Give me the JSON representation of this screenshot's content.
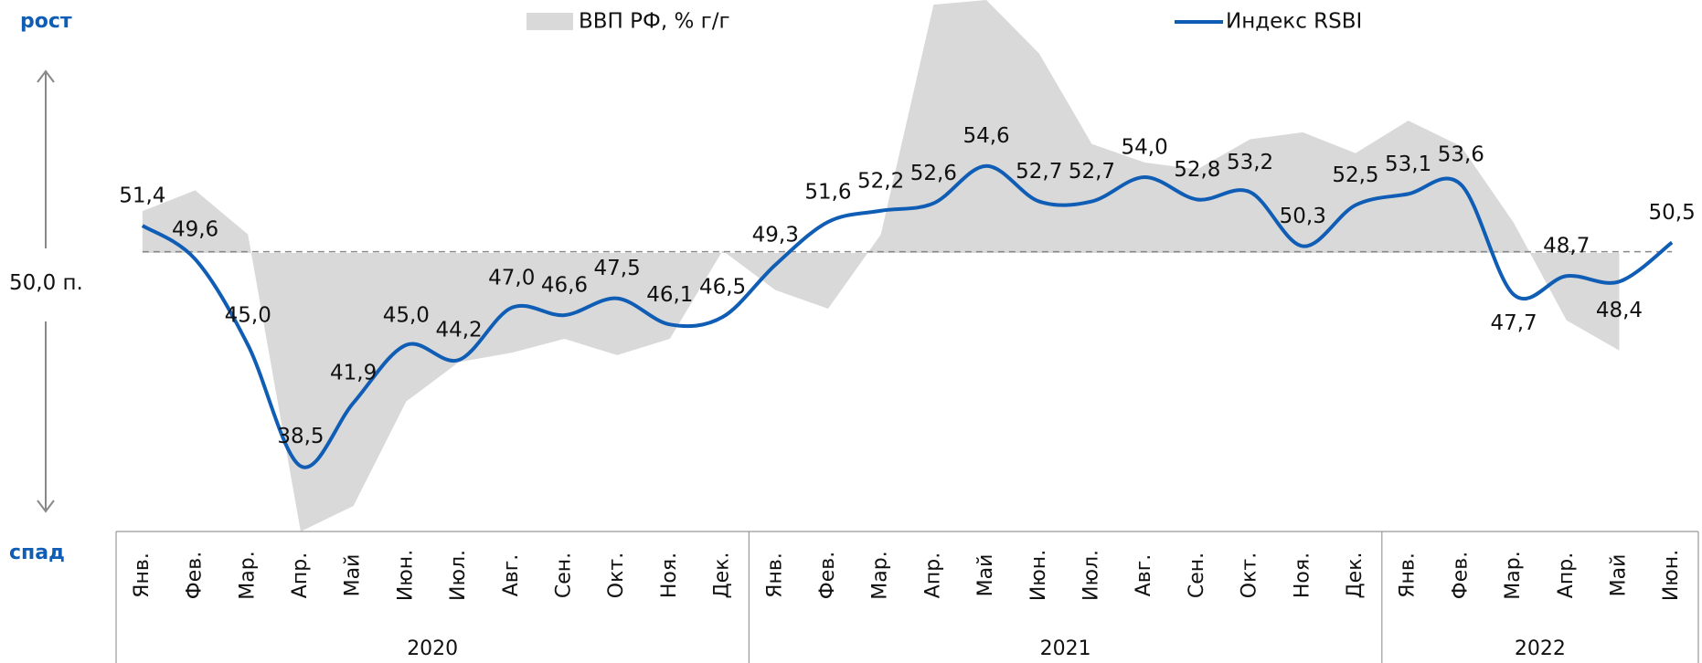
{
  "chart_data": {
    "type": "line-area",
    "legend": [
      "ВВП РФ, % г/г",
      "Индекс RSBI"
    ],
    "annotations": {
      "top": "рост",
      "bottom": "спад"
    },
    "reference": {
      "value": 50,
      "label": "50,0 п."
    },
    "categories": [
      "Янв.",
      "Фев.",
      "Мар.",
      "Апр.",
      "Май",
      "Июн.",
      "Июл.",
      "Авг.",
      "Сен.",
      "Окт.",
      "Ноя.",
      "Дек.",
      "Янв.",
      "Фев.",
      "Мар.",
      "Апр.",
      "Май",
      "Июн.",
      "Июл.",
      "Авг.",
      "Сен.",
      "Окт.",
      "Ноя.",
      "Дек.",
      "Янв.",
      "Фев.",
      "Мар.",
      "Апр.",
      "Май",
      "Июн."
    ],
    "groups": [
      {
        "label": "2020",
        "count": 12
      },
      {
        "label": "2021",
        "count": 12
      },
      {
        "label": "2022",
        "count": 6
      }
    ],
    "ylim": [
      35,
      63.5
    ],
    "y2lim": [
      -12,
      10.9
    ],
    "series": [
      {
        "name": "ВВП РФ, % г/г",
        "type": "area",
        "axis": "y2",
        "color": "#d9d9d9",
        "values": [
          1.8,
          2.7,
          0.8,
          -12.0,
          -10.9,
          -6.4,
          -4.7,
          -4.3,
          -3.7,
          -4.4,
          -3.7,
          0.1,
          -1.6,
          -2.4,
          0.8,
          10.7,
          10.9,
          8.6,
          4.7,
          3.9,
          3.6,
          4.9,
          5.2,
          4.3,
          5.7,
          4.6,
          1.3,
          -2.9,
          -4.2,
          null
        ]
      },
      {
        "name": "Индекс RSBI",
        "type": "line",
        "color": "#0f5db4",
        "values": [
          51.4,
          49.6,
          45.0,
          38.5,
          41.9,
          45.0,
          44.2,
          47.0,
          46.6,
          47.5,
          46.1,
          46.5,
          49.3,
          51.6,
          52.2,
          52.6,
          54.6,
          52.7,
          52.7,
          54.0,
          52.8,
          53.2,
          50.3,
          52.5,
          53.1,
          53.6,
          47.7,
          48.7,
          48.4,
          50.5
        ],
        "value_labels": [
          "51,4",
          "49,6",
          "45,0",
          "38,5",
          "41,9",
          "45,0",
          "44,2",
          "47,0",
          "46,6",
          "47,5",
          "46,1",
          "46,5",
          "49,3",
          "51,6",
          "52,2",
          "52,6",
          "54,6",
          "52,7",
          "52,7",
          "54,0",
          "52,8",
          "53,2",
          "50,3",
          "52,5",
          "53,1",
          "53,6",
          "47,7",
          "48,7",
          "48,4",
          "50,5"
        ]
      }
    ]
  }
}
